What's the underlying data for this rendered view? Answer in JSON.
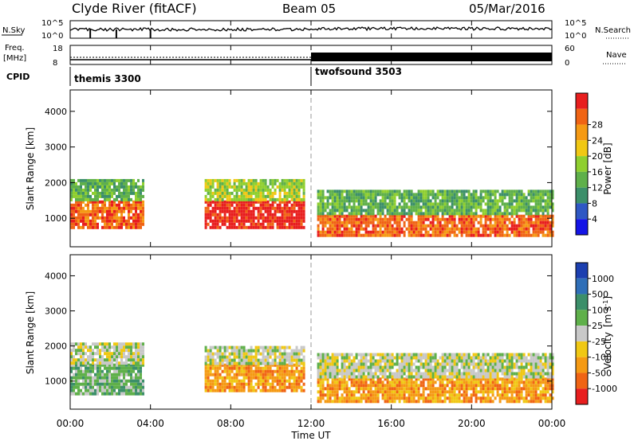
{
  "header": {
    "station": "Clyde River (fitACF)",
    "beam": "Beam 05",
    "date": "05/Mar/2016"
  },
  "noise_panel": {
    "left_label": "N.Sky",
    "left_ticks": [
      "10^5",
      "10^0"
    ],
    "right_ticks": [
      "10^5",
      "10^0"
    ],
    "right_label": "N.Search"
  },
  "freq_panel": {
    "left_label_1": "Freq.",
    "left_label_2": "[MHz]",
    "left_ticks": [
      "18",
      "8"
    ],
    "right_ticks": [
      "60",
      "0"
    ],
    "right_label": "Nave"
  },
  "cpid_panel": {
    "label": "CPID",
    "programs": [
      {
        "name": "themis 3300",
        "start_hour": 0
      },
      {
        "name": "twofsound 3503",
        "start_hour": 12
      }
    ]
  },
  "time_axis": {
    "label": "Time UT",
    "ticks": [
      "00:00",
      "04:00",
      "08:00",
      "12:00",
      "16:00",
      "20:00",
      "00:00"
    ]
  },
  "range_axis": {
    "label": "Slant Range [km]",
    "ticks": [
      "1000",
      "2000",
      "3000",
      "4000"
    ]
  },
  "power_colorbar": {
    "label": "Power [dB]",
    "ticks": [
      "4",
      "8",
      "12",
      "16",
      "20",
      "24",
      "28"
    ],
    "colors": [
      "#1414e6",
      "#2f58c4",
      "#3c8f6a",
      "#5fb04a",
      "#8fcf2f",
      "#f0c814",
      "#f59a14",
      "#f06414",
      "#e81e1e"
    ]
  },
  "velocity_colorbar": {
    "label_main": "Velocity",
    "label_unit": "[m s",
    "label_exp": "-1",
    "label_close": "]",
    "ticks": [
      "1000",
      "500",
      "100",
      "25",
      "-25",
      "-100",
      "-500",
      "-1000"
    ],
    "colors": [
      "#1c3fb0",
      "#2f6fb8",
      "#3c8f6a",
      "#5fb04a",
      "#c8c8c8",
      "#f0c814",
      "#f59a14",
      "#f06414",
      "#e81e1e"
    ]
  },
  "chart_data": {
    "type": "heatmap",
    "title": "Clyde River (fitACF)",
    "subtitle": "Beam 05",
    "xlabel": "Time UT",
    "ylabel": "Slant Range [km]",
    "xlim": [
      0,
      24
    ],
    "ylim": [
      200,
      4600
    ],
    "panels": [
      {
        "quantity": "Power [dB]",
        "clim": [
          0,
          30
        ],
        "regions": [
          {
            "t0": 0.0,
            "t1": 3.6,
            "r0": 700,
            "r1": 1500,
            "value": 26
          },
          {
            "t0": 0.0,
            "t1": 3.6,
            "r0": 1500,
            "r1": 2100,
            "value": 12
          },
          {
            "t0": 6.7,
            "t1": 11.6,
            "r0": 700,
            "r1": 1500,
            "value": 27
          },
          {
            "t0": 6.7,
            "t1": 11.6,
            "r0": 1500,
            "r1": 2100,
            "value": 14
          },
          {
            "t0": 12.3,
            "t1": 24.0,
            "r0": 500,
            "r1": 1100,
            "value": 26
          },
          {
            "t0": 12.3,
            "t1": 24.0,
            "r0": 1100,
            "r1": 1800,
            "value": 12
          }
        ]
      },
      {
        "quantity": "Velocity [m s-1]",
        "clim": [
          -1000,
          1000
        ],
        "regions": [
          {
            "t0": 0.0,
            "t1": 3.6,
            "r0": 600,
            "r1": 1500,
            "value": 300
          },
          {
            "t0": 0.0,
            "t1": 3.6,
            "r0": 1500,
            "r1": 2100,
            "value": 80
          },
          {
            "t0": 6.7,
            "t1": 11.6,
            "r0": 700,
            "r1": 1500,
            "value": -400
          },
          {
            "t0": 6.7,
            "t1": 11.6,
            "r0": 1500,
            "r1": 2000,
            "value": 0
          },
          {
            "t0": 12.3,
            "t1": 24.0,
            "r0": 400,
            "r1": 1100,
            "value": -400
          },
          {
            "t0": 12.3,
            "t1": 24.0,
            "r0": 1100,
            "r1": 1800,
            "value": 20
          }
        ]
      }
    ]
  }
}
